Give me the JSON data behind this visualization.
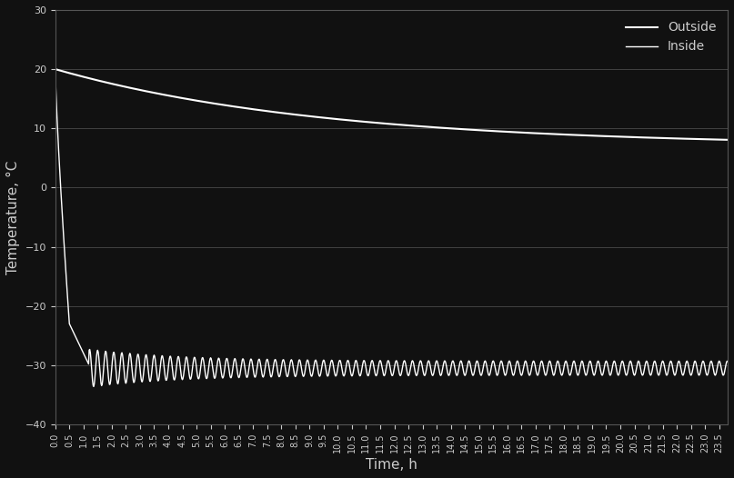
{
  "background_color": "#111111",
  "text_color": "#cccccc",
  "line_color": "#ffffff",
  "grid_color": "#555555",
  "title": "",
  "xlabel": "Time, h",
  "ylabel": "Temperature, °C",
  "ylim": [
    -40,
    30
  ],
  "yticks": [
    -40,
    -30,
    -20,
    -10,
    0,
    10,
    20,
    30
  ],
  "xlim_start": 0.0,
  "xlim_end": 23.8,
  "x_tick_step": 0.5,
  "outside_start": 20.0,
  "outside_end": 7.0,
  "k_out": 0.105,
  "inside_osc_mean": -30.5,
  "inside_osc_amp_early": 2.0,
  "inside_osc_amp_late": 1.2,
  "inside_osc_freq": 3.5,
  "legend_outside": "Outside",
  "legend_inside": "Inside",
  "fontsize_label": 11,
  "fontsize_tick": 8,
  "fontsize_legend": 10
}
